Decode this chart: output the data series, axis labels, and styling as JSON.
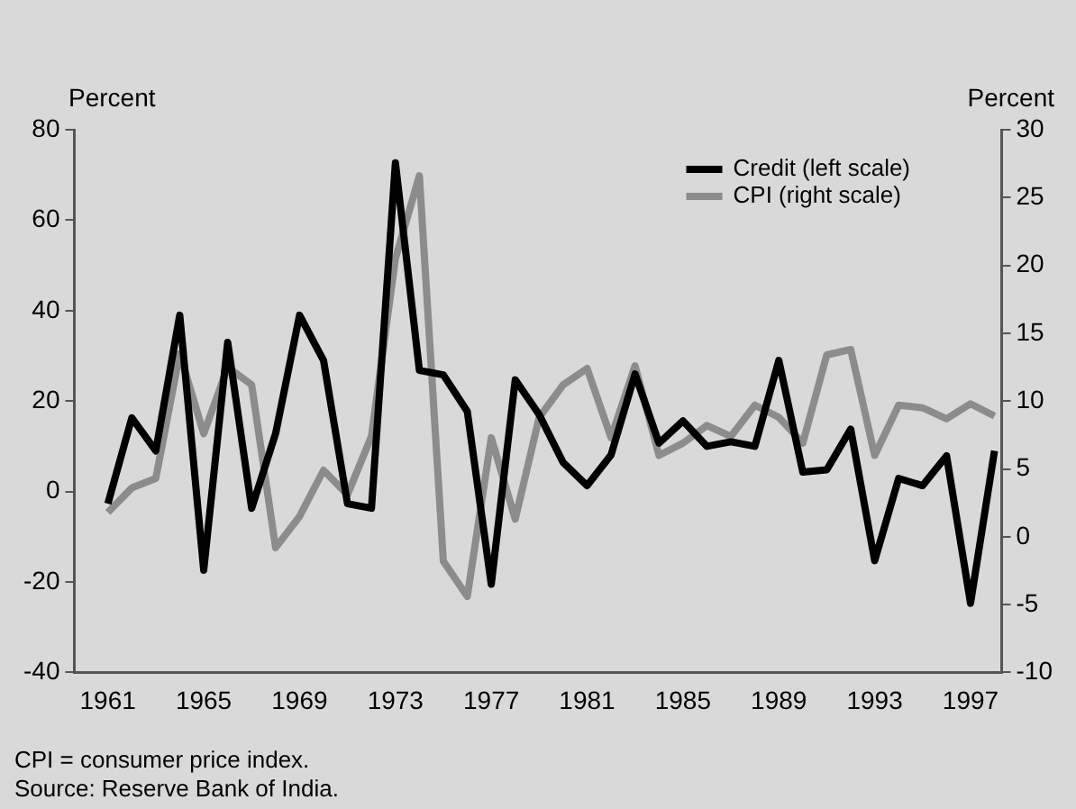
{
  "chart_data": {
    "type": "line",
    "ylabel": "Percent",
    "y2label": "Percent",
    "x": [
      1961,
      1962,
      1963,
      1964,
      1965,
      1966,
      1967,
      1968,
      1969,
      1970,
      1971,
      1972,
      1973,
      1974,
      1975,
      1976,
      1977,
      1978,
      1979,
      1980,
      1981,
      1982,
      1983,
      1984,
      1985,
      1986,
      1987,
      1988,
      1989,
      1990,
      1991,
      1992,
      1993,
      1994,
      1995,
      1996,
      1997,
      1998
    ],
    "series": [
      {
        "name": "Credit (left scale)",
        "color": "#000000",
        "values": [
          -2.7,
          16.3,
          9,
          39,
          -17.4,
          33,
          -3.7,
          12.8,
          39,
          29,
          -2.7,
          -3.7,
          72.7,
          26.8,
          25.8,
          17.7,
          -20.5,
          24.7,
          17,
          6.4,
          1.3,
          8.1,
          26,
          10.7,
          15.6,
          10,
          11,
          10,
          29,
          4.3,
          4.8,
          13.8,
          -15.3,
          2.9,
          1.3,
          7.9,
          -24.7,
          9
        ]
      },
      {
        "name": "CPI (right scale)",
        "color": "#8c8c8c",
        "axis": "y2",
        "values": [
          1.8,
          3.6,
          4.3,
          13.5,
          7.6,
          12.5,
          11.2,
          -0.8,
          1.5,
          4.9,
          3.1,
          7.4,
          20.5,
          26.6,
          -1.8,
          -4.4,
          7.3,
          1.3,
          8.8,
          11.2,
          12.4,
          7.3,
          12.6,
          6,
          6.9,
          8.2,
          7.4,
          9.7,
          8.8,
          6.9,
          13.4,
          13.8,
          6,
          9.7,
          9.5,
          8.7,
          9.8,
          8.9
        ]
      }
    ],
    "xlim": [
      1959.6,
      1998.3
    ],
    "xticks": [
      1961,
      1965,
      1969,
      1973,
      1977,
      1981,
      1985,
      1989,
      1993,
      1997
    ],
    "ylim": [
      -40,
      80
    ],
    "yticks": [
      -40,
      -20,
      0,
      20,
      40,
      60,
      80
    ],
    "y2lim": [
      -10,
      30
    ],
    "y2ticks": [
      -10,
      -5,
      0,
      5,
      10,
      15,
      20,
      25,
      30
    ],
    "grid": false,
    "legend": "top right",
    "marker": "none",
    "line_style": "solid",
    "annotations": [
      "CPI = consumer price index.",
      "Source: Reserve Bank of India."
    ]
  }
}
